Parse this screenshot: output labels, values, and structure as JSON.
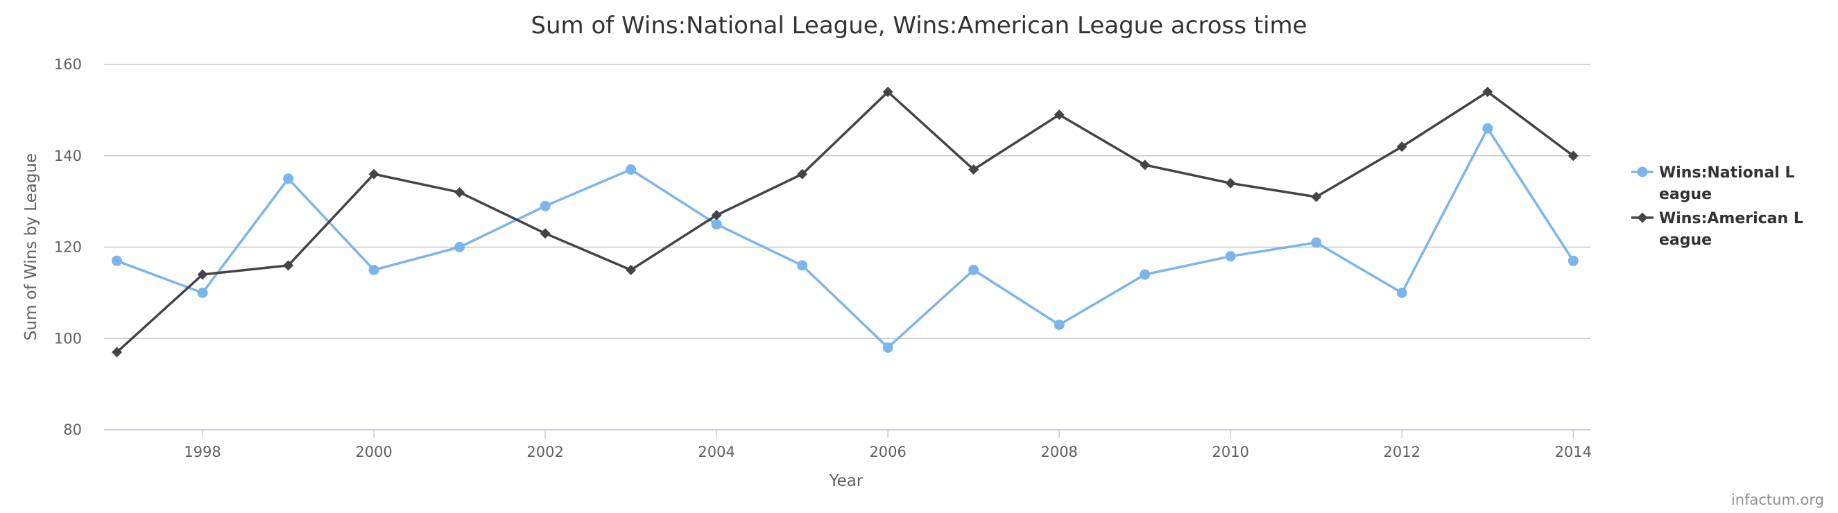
{
  "chart_data": {
    "type": "line",
    "title": "Sum of Wins:National League, Wins:American League across time",
    "xlabel": "Year",
    "ylabel": "Sum of Wins by League",
    "x": [
      1997,
      1998,
      1999,
      2000,
      2001,
      2002,
      2003,
      2004,
      2005,
      2006,
      2007,
      2008,
      2009,
      2010,
      2011,
      2012,
      2013,
      2014
    ],
    "xticks": [
      1998,
      2000,
      2002,
      2004,
      2006,
      2008,
      2010,
      2012,
      2014
    ],
    "yticks": [
      80,
      100,
      120,
      140,
      160
    ],
    "xlim": [
      1996.85,
      2014.2
    ],
    "ylim": [
      80,
      160
    ],
    "grid": true,
    "legend_position": "right",
    "series": [
      {
        "name": "Wins:National League",
        "legend_lines": [
          "Wins:National L",
          "eague"
        ],
        "marker": "circle",
        "color": "#7cb5ec",
        "values": [
          117,
          110,
          135,
          115,
          120,
          129,
          137,
          125,
          116,
          98,
          115,
          103,
          114,
          118,
          121,
          110,
          146,
          117
        ]
      },
      {
        "name": "Wins:American League",
        "legend_lines": [
          "Wins:American L",
          "eague"
        ],
        "marker": "diamond",
        "color": "#434348",
        "values": [
          97,
          114,
          116,
          136,
          132,
          123,
          115,
          127,
          136,
          154,
          137,
          149,
          138,
          134,
          131,
          142,
          154,
          140
        ]
      }
    ]
  },
  "credit": "infactum.org"
}
